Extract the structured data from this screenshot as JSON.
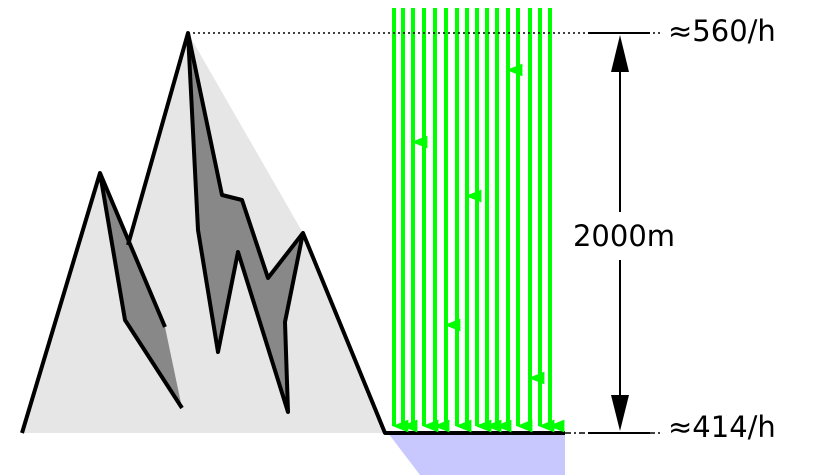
{
  "labels": {
    "top_rate": "≈560/h",
    "bottom_rate": "≈414/h",
    "altitude_difference": "2000m"
  },
  "colors": {
    "mountain_light": "#e6e6e6",
    "mountain_shadow": "#888888",
    "outline": "#000000",
    "rays": "#00ff00",
    "water": "#c8c8ff"
  }
}
